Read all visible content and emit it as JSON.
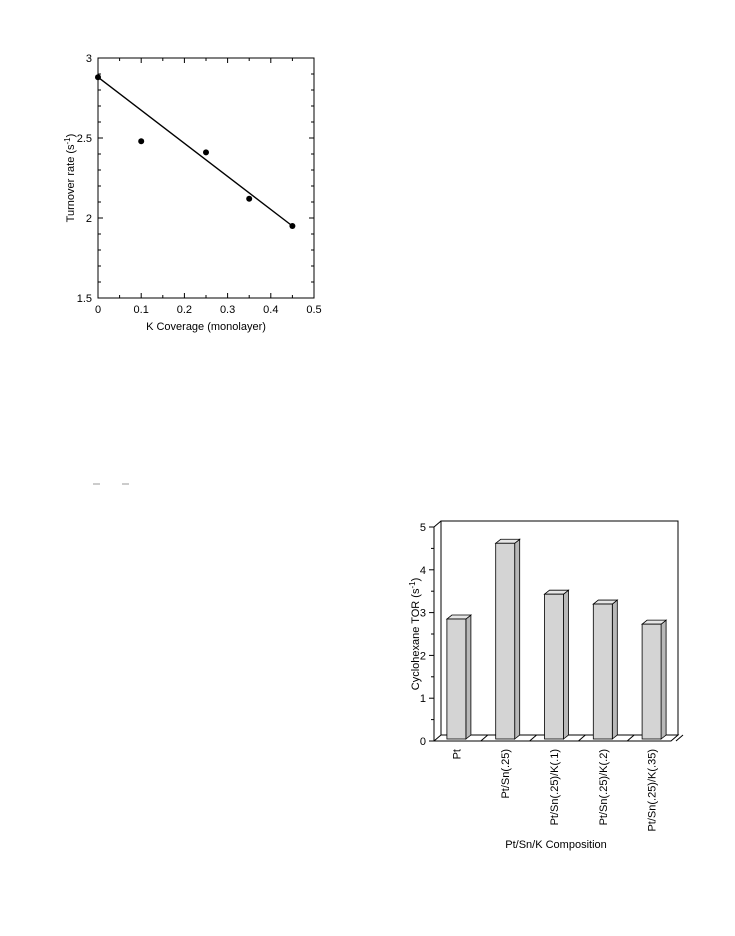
{
  "chart_data": [
    {
      "type": "scatter",
      "xlabel": "K Coverage (monolayer)",
      "ylabel": "Turnover rate (s",
      "ylabel_sup": "-1",
      "ylabel_end": ")",
      "xlim": [
        0,
        0.5
      ],
      "ylim": [
        1.5,
        3
      ],
      "x_ticks": [
        0,
        0.1,
        0.2,
        0.3,
        0.4,
        0.5
      ],
      "x_tick_labels": [
        "0",
        "0.1",
        "0.2",
        "0.3",
        "0.4",
        "0.5"
      ],
      "y_ticks": [
        1.5,
        2,
        2.5,
        3
      ],
      "y_tick_labels": [
        "1.5",
        "2",
        "2.5",
        "3"
      ],
      "points": [
        {
          "x": 0,
          "y": 2.88
        },
        {
          "x": 0.1,
          "y": 2.48
        },
        {
          "x": 0.25,
          "y": 2.41
        },
        {
          "x": 0.35,
          "y": 2.12
        },
        {
          "x": 0.45,
          "y": 1.95
        }
      ],
      "fit_line": {
        "x": [
          0,
          0.45
        ],
        "y": [
          2.88,
          1.95
        ]
      },
      "grid": false
    },
    {
      "type": "bar",
      "categories": [
        "Pt",
        "Pt/Sn(.25)",
        "Pt/Sn(.25)/K(.1)",
        "Pt/Sn(.25)/K(.2)",
        "Pt/Sn(.25)/K(.35)"
      ],
      "values": [
        2.85,
        4.62,
        3.43,
        3.2,
        2.73
      ],
      "xlabel": "Pt/Sn/K  Composition",
      "ylabel": "Cyclohexane TOR (s",
      "ylabel_sup": "-1",
      "ylabel_end": ")",
      "ylim": [
        0,
        5
      ],
      "y_ticks": [
        0,
        1,
        2,
        3,
        4,
        5
      ],
      "y_tick_labels": [
        "0",
        "1",
        "2",
        "3",
        "4",
        "5"
      ],
      "bar_color": "#d4d4d4",
      "grid": false
    }
  ]
}
